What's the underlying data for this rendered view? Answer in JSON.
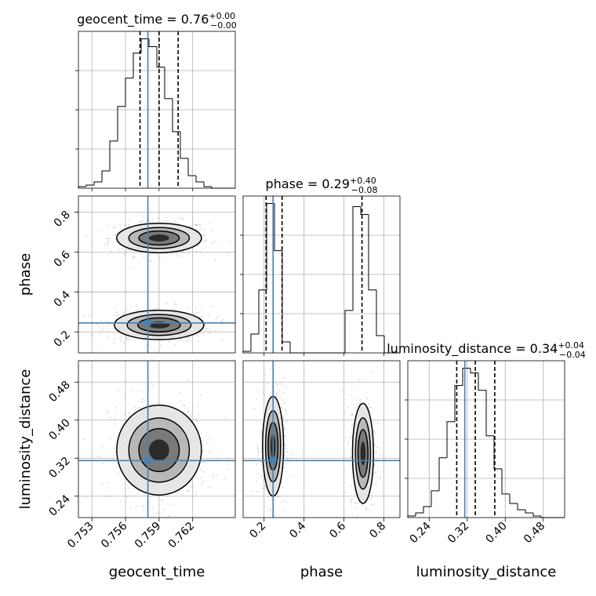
{
  "chart_data": {
    "type": "corner",
    "parameters": [
      {
        "name": "geocent_time",
        "title_value": "0.76",
        "err_plus": "+0.00",
        "err_minus": "−0.00",
        "range": [
          0.7518,
          0.7658
        ],
        "ticks": [
          0.753,
          0.756,
          0.759,
          0.762
        ],
        "tick_labels": [
          "0.753",
          "0.756",
          "0.759",
          "0.762"
        ],
        "truth": 0.758,
        "quantiles": [
          0.7573,
          0.759,
          0.7607
        ],
        "hist_edges_start": 0.7518,
        "hist_bin_width": 0.0007,
        "hist_counts": [
          1,
          2,
          4,
          11,
          30,
          52,
          70,
          86,
          95,
          90,
          77,
          57,
          36,
          19,
          8,
          4,
          1,
          0,
          0,
          0
        ]
      },
      {
        "name": "phase",
        "title_value": "0.29",
        "err_plus": "+0.40",
        "err_minus": "−0.08",
        "range": [
          0.095,
          0.88
        ],
        "ticks": [
          0.2,
          0.4,
          0.6,
          0.8
        ],
        "tick_labels": [
          "0.2",
          "0.4",
          "0.6",
          "0.8"
        ],
        "truth": 0.245,
        "quantiles": [
          0.21,
          0.29,
          0.69
        ],
        "hist_edges_start": 0.095,
        "hist_bin_width": 0.03925,
        "hist_counts": [
          1,
          12,
          40,
          95,
          65,
          7,
          0,
          0,
          0,
          0,
          0,
          0,
          0,
          27,
          93,
          88,
          40,
          11,
          0,
          0
        ]
      },
      {
        "name": "luminosity_distance",
        "title_value": "0.34",
        "err_plus": "+0.04",
        "err_minus": "−0.04",
        "range": [
          0.195,
          0.525
        ],
        "ticks": [
          0.24,
          0.32,
          0.4,
          0.48
        ],
        "tick_labels": [
          "0.24",
          "0.32",
          "0.40",
          "0.48"
        ],
        "truth": 0.315,
        "quantiles": [
          0.298,
          0.337,
          0.378
        ],
        "hist_edges_start": 0.195,
        "hist_bin_width": 0.0165,
        "hist_counts": [
          1,
          3,
          7,
          17,
          38,
          61,
          84,
          95,
          92,
          81,
          52,
          31,
          15,
          9,
          5,
          3,
          1,
          0,
          0,
          0
        ]
      }
    ],
    "pairs": {
      "phase_vs_geocent_time": {
        "modes": [
          {
            "x": 0.759,
            "y": 0.67,
            "sx": 0.0018,
            "sy": 0.035
          },
          {
            "x": 0.759,
            "y": 0.235,
            "sx": 0.0019,
            "sy": 0.035
          }
        ]
      },
      "luminosity_distance_vs_geocent_time": {
        "modes": [
          {
            "x": 0.759,
            "y": 0.337,
            "sx": 0.0018,
            "sy": 0.045
          }
        ]
      },
      "luminosity_distance_vs_phase": {
        "modes": [
          {
            "x": 0.245,
            "y": 0.345,
            "sx": 0.025,
            "sy": 0.05
          },
          {
            "x": 0.695,
            "y": 0.33,
            "sx": 0.025,
            "sy": 0.05
          }
        ]
      }
    },
    "colors": {
      "truth": "#4682b4",
      "hist": "#000000",
      "grid": "#b0b0b0",
      "contour": "#000000",
      "scatter": "#808080"
    },
    "grid": true
  }
}
